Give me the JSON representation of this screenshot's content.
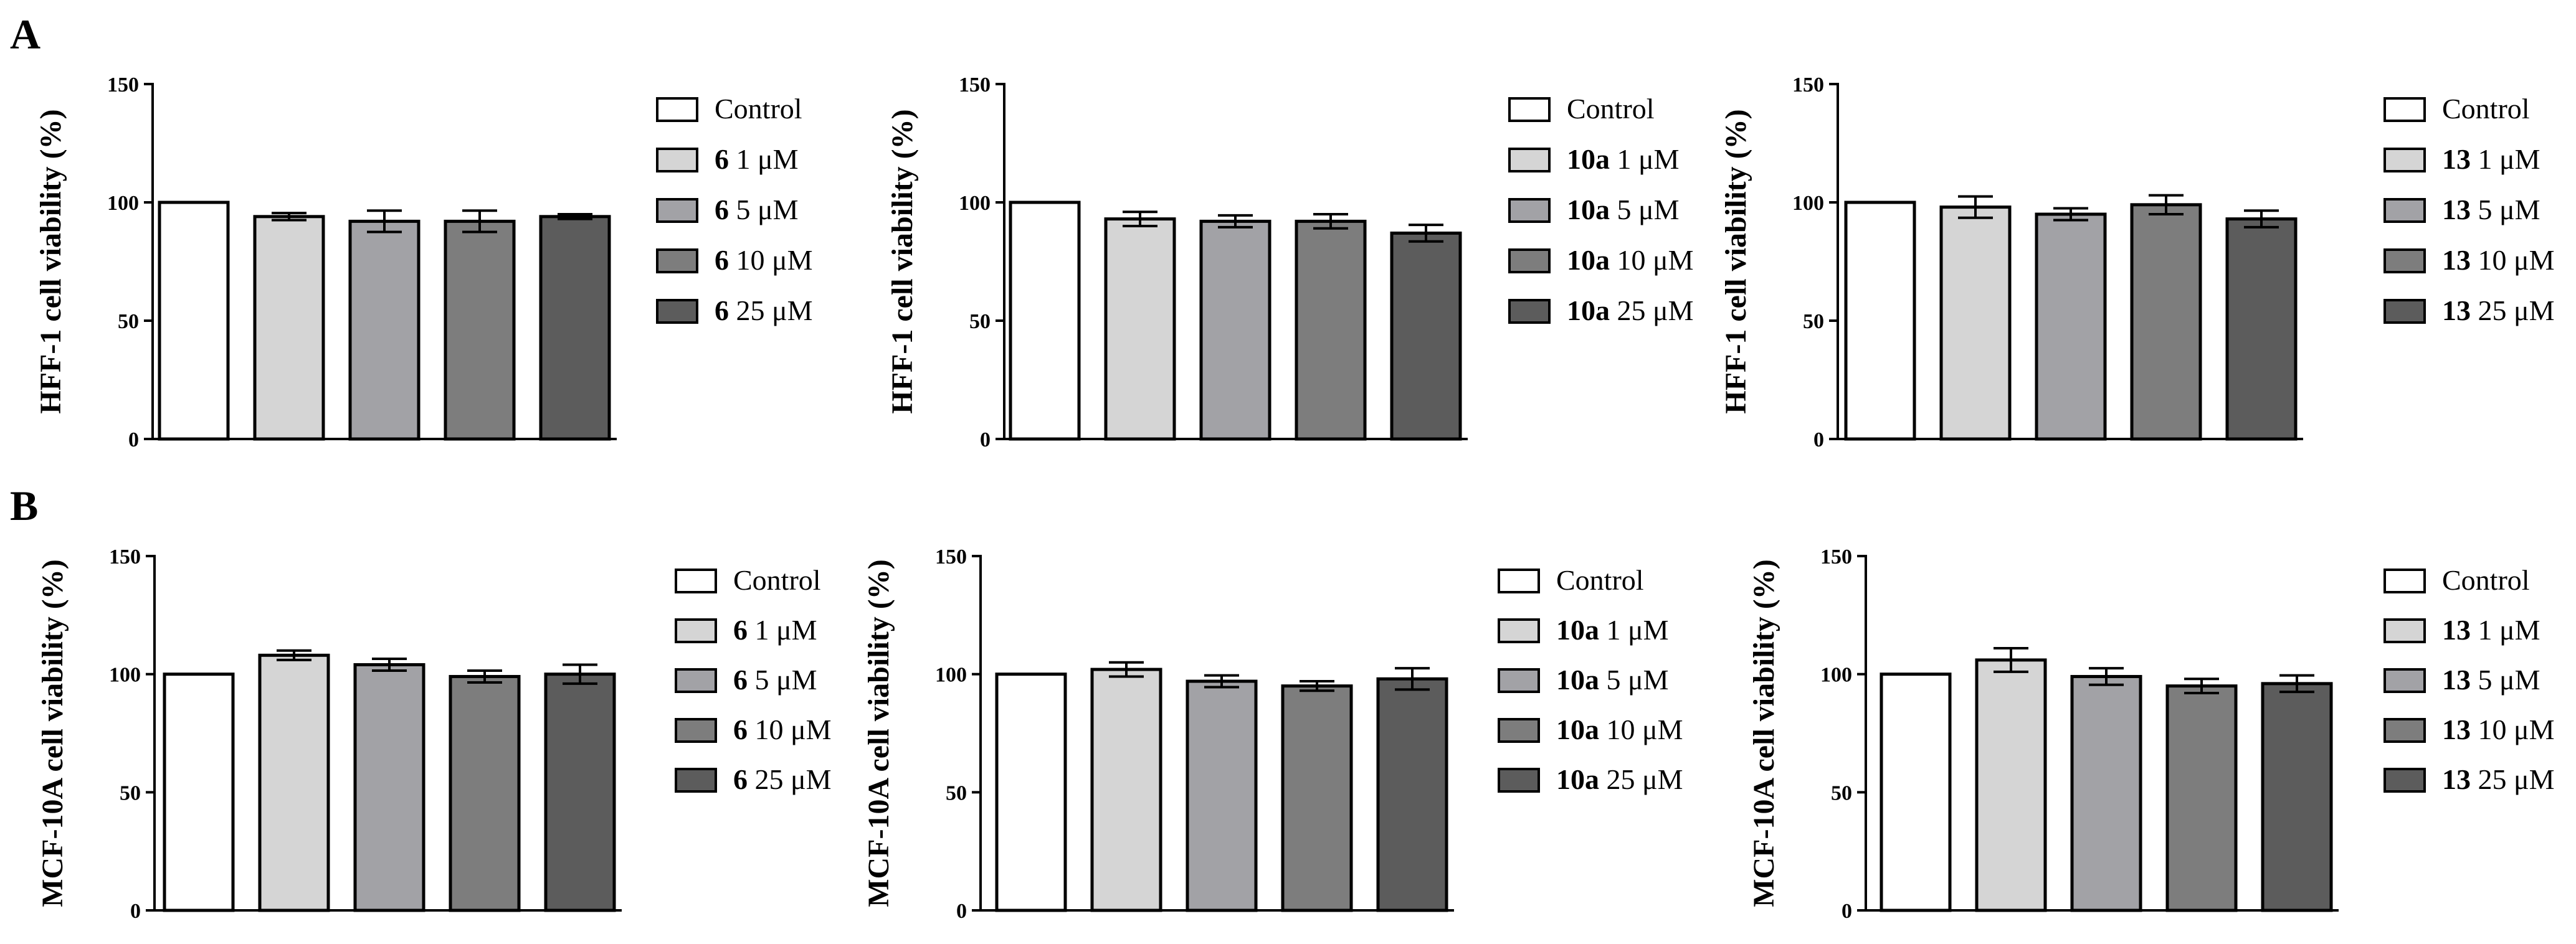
{
  "panel_labels": [
    "A",
    "B"
  ],
  "chart_data": [
    {
      "type": "bar",
      "panel": "A",
      "ylabel": "HFF-1 cell viability (%)",
      "ylim": [
        0,
        150
      ],
      "yticks": [
        "0",
        "50",
        "100",
        "150"
      ],
      "categories": [
        "Control",
        "6 1 μM",
        "6 5 μM",
        "6 10 μM",
        "6 25 μM"
      ],
      "values": [
        100,
        94,
        92,
        92,
        94
      ],
      "errors": [
        0,
        1.5,
        4.5,
        4.5,
        1
      ],
      "colors": [
        "#ffffff",
        "#d5d5d5",
        "#a2a2a6",
        "#7d7d7d",
        "#5c5c5c"
      ],
      "legend": [
        {
          "compound": "",
          "dose": "Control"
        },
        {
          "compound": "6",
          "dose": "1 μM"
        },
        {
          "compound": "6",
          "dose": "5 μM"
        },
        {
          "compound": "6",
          "dose": "10 μM"
        },
        {
          "compound": "6",
          "dose": "25 μM"
        }
      ]
    },
    {
      "type": "bar",
      "panel": "",
      "ylabel": "HFF-1 cell viability (%)",
      "ylim": [
        0,
        150
      ],
      "yticks": [
        "0",
        "50",
        "100",
        "150"
      ],
      "categories": [
        "Control",
        "10a 1 μM",
        "10a 5 μM",
        "10a 10 μM",
        "10a 25 μM"
      ],
      "values": [
        100,
        93,
        92,
        92,
        87
      ],
      "errors": [
        0,
        3,
        2.5,
        3,
        3.5
      ],
      "colors": [
        "#ffffff",
        "#d5d5d5",
        "#a2a2a6",
        "#7d7d7d",
        "#5c5c5c"
      ],
      "legend": [
        {
          "compound": "",
          "dose": "Control"
        },
        {
          "compound": "10a",
          "dose": "1 μM"
        },
        {
          "compound": "10a",
          "dose": "5 μM"
        },
        {
          "compound": "10a",
          "dose": "10 μM"
        },
        {
          "compound": "10a",
          "dose": "25 μM"
        }
      ]
    },
    {
      "type": "bar",
      "panel": "",
      "ylabel": "HFF-1 cell viability (%)",
      "ylim": [
        0,
        150
      ],
      "yticks": [
        "0",
        "50",
        "100",
        "150"
      ],
      "categories": [
        "Control",
        "13 1 μM",
        "13 5 μM",
        "13 10 μM",
        "13 25 μM"
      ],
      "values": [
        100,
        98,
        95,
        99,
        93
      ],
      "errors": [
        0,
        4.5,
        2.5,
        4,
        3.5
      ],
      "colors": [
        "#ffffff",
        "#d5d5d5",
        "#a2a2a6",
        "#7d7d7d",
        "#5c5c5c"
      ],
      "legend": [
        {
          "compound": "",
          "dose": "Control"
        },
        {
          "compound": "13",
          "dose": "1 μM"
        },
        {
          "compound": "13",
          "dose": "5 μM"
        },
        {
          "compound": "13",
          "dose": "10 μM"
        },
        {
          "compound": "13",
          "dose": "25 μM"
        }
      ]
    },
    {
      "type": "bar",
      "panel": "B",
      "ylabel": "MCF-10A cell viability (%)",
      "ylim": [
        0,
        150
      ],
      "yticks": [
        "0",
        "50",
        "100",
        "150"
      ],
      "categories": [
        "Control",
        "6 1 μM",
        "6 5 μM",
        "6 10 μM",
        "6 25 μM"
      ],
      "values": [
        100,
        108,
        104,
        99,
        100
      ],
      "errors": [
        0,
        2,
        2.5,
        2.5,
        4
      ],
      "colors": [
        "#ffffff",
        "#d5d5d5",
        "#a2a2a6",
        "#7d7d7d",
        "#5c5c5c"
      ],
      "legend": [
        {
          "compound": "",
          "dose": "Control"
        },
        {
          "compound": "6",
          "dose": "1 μM"
        },
        {
          "compound": "6",
          "dose": "5 μM"
        },
        {
          "compound": "6",
          "dose": "10 μM"
        },
        {
          "compound": "6",
          "dose": "25 μM"
        }
      ]
    },
    {
      "type": "bar",
      "panel": "",
      "ylabel": "MCF-10A cell viability (%)",
      "ylim": [
        0,
        150
      ],
      "yticks": [
        "0",
        "50",
        "100",
        "150"
      ],
      "categories": [
        "Control",
        "10a 1 μM",
        "10a 5 μM",
        "10a 10 μM",
        "10a 25 μM"
      ],
      "values": [
        100,
        102,
        97,
        95,
        98
      ],
      "errors": [
        0,
        3,
        2.5,
        2,
        4.5
      ],
      "colors": [
        "#ffffff",
        "#d5d5d5",
        "#a2a2a6",
        "#7d7d7d",
        "#5c5c5c"
      ],
      "legend": [
        {
          "compound": "",
          "dose": "Control"
        },
        {
          "compound": "10a",
          "dose": "1 μM"
        },
        {
          "compound": "10a",
          "dose": "5 μM"
        },
        {
          "compound": "10a",
          "dose": "10 μM"
        },
        {
          "compound": "10a",
          "dose": "25 μM"
        }
      ]
    },
    {
      "type": "bar",
      "panel": "",
      "ylabel": "MCF-10A cell viability (%)",
      "ylim": [
        0,
        150
      ],
      "yticks": [
        "0",
        "50",
        "100",
        "150"
      ],
      "categories": [
        "Control",
        "13 1 μM",
        "13 5 μM",
        "13 10 μM",
        "13 25 μM"
      ],
      "values": [
        100,
        106,
        99,
        95,
        96
      ],
      "errors": [
        0,
        5,
        3.5,
        3,
        3.5
      ],
      "colors": [
        "#ffffff",
        "#d5d5d5",
        "#a2a2a6",
        "#7d7d7d",
        "#5c5c5c"
      ],
      "legend": [
        {
          "compound": "",
          "dose": "Control"
        },
        {
          "compound": "13",
          "dose": "1 μM"
        },
        {
          "compound": "13",
          "dose": "5 μM"
        },
        {
          "compound": "13",
          "dose": "10 μM"
        },
        {
          "compound": "13",
          "dose": "25 μM"
        }
      ]
    }
  ]
}
